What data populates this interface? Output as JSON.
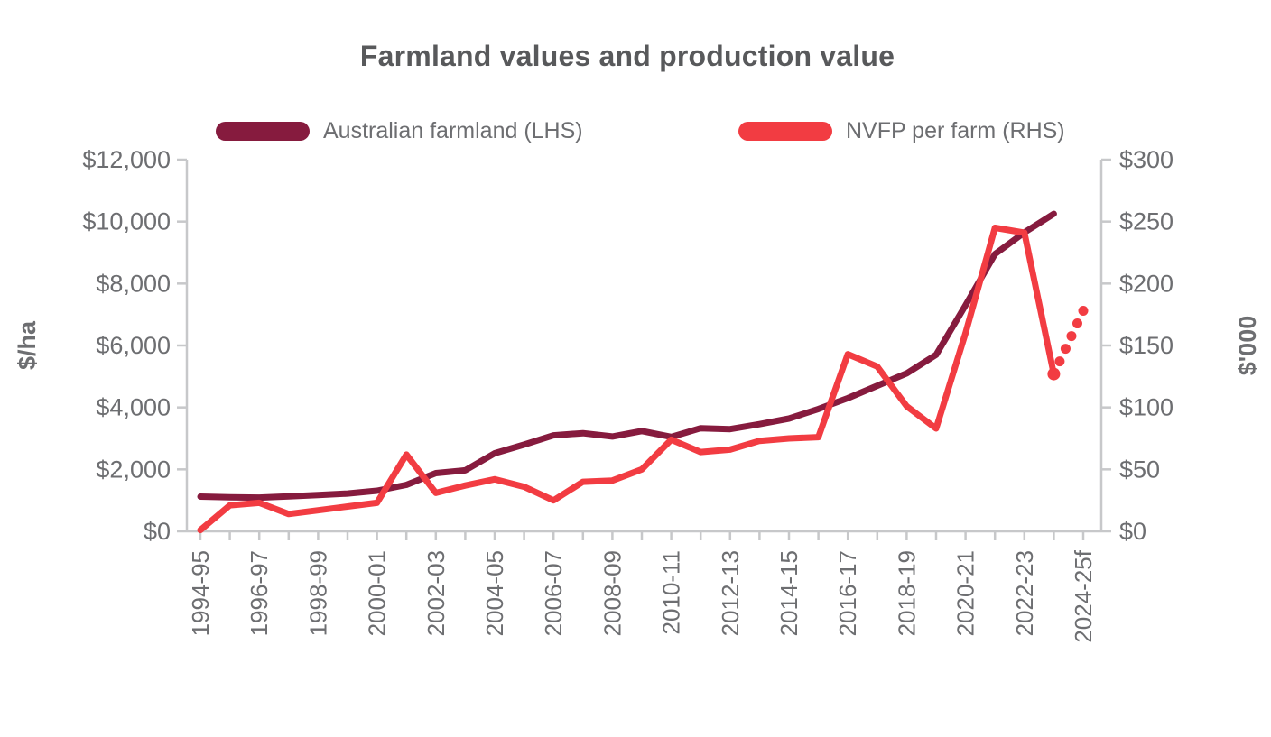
{
  "title": "Farmland values and production value",
  "legend": {
    "farmland_label": "Australian farmland (LHS)",
    "nvfp_label": "NVFP per farm (RHS)"
  },
  "colors": {
    "farmland": "#861b3e",
    "nvfp": "#f23c42",
    "axis": "#c7c8ca",
    "tick_text": "#6d6e71",
    "title_text": "#58595b"
  },
  "chart_data": {
    "type": "line",
    "title": "Farmland values and production value",
    "categories": [
      "1994-95",
      "1995-96",
      "1996-97",
      "1997-98",
      "1998-99",
      "1999-00",
      "2000-01",
      "2001-02",
      "2002-03",
      "2003-04",
      "2004-05",
      "2005-06",
      "2006-07",
      "2007-08",
      "2008-09",
      "2009-10",
      "2010-11",
      "2011-12",
      "2012-13",
      "2013-14",
      "2014-15",
      "2015-16",
      "2016-17",
      "2017-18",
      "2018-19",
      "2019-20",
      "2020-21",
      "2021-22",
      "2022-23",
      "2023-24",
      "2024-25f"
    ],
    "x_tick_labels_shown": [
      "1994-95",
      "1996-97",
      "1998-99",
      "2000-01",
      "2002-03",
      "2004-05",
      "2006-07",
      "2008-09",
      "2010-11",
      "2012-13",
      "2014-15",
      "2016-17",
      "2018-19",
      "2020-21",
      "2022-23",
      "2024-25f"
    ],
    "series": [
      {
        "name": "Australian farmland (LHS)",
        "axis": "left",
        "style": "solid",
        "values": [
          1120,
          1100,
          1090,
          1130,
          1170,
          1220,
          1310,
          1500,
          1880,
          1970,
          2520,
          2800,
          3100,
          3170,
          3060,
          3240,
          3050,
          3330,
          3300,
          3460,
          3640,
          3950,
          4300,
          4700,
          5100,
          5700,
          7300,
          8950,
          9650,
          10250,
          null
        ]
      },
      {
        "name": "NVFP per farm (RHS)",
        "axis": "right",
        "style": "solid-with-dotted-forecast",
        "values": [
          1,
          21,
          23,
          14,
          17,
          20,
          23,
          62,
          31,
          37,
          42,
          36,
          25,
          40,
          41,
          50,
          74,
          64,
          66,
          73,
          75,
          76,
          143,
          133,
          101,
          83,
          160,
          245,
          241,
          127,
          null
        ],
        "forecast": {
          "from_category": "2023-24",
          "from_value": 127,
          "to_category": "2024-25f",
          "to_value": 178
        }
      }
    ],
    "left_axis": {
      "label": "$/ha",
      "min": 0,
      "max": 12000,
      "tick_step": 2000,
      "tick_labels": [
        "$0",
        "$2,000",
        "$4,000",
        "$6,000",
        "$8,000",
        "$10,000",
        "$12,000"
      ]
    },
    "right_axis": {
      "label": "$'000",
      "min": 0,
      "max": 300,
      "tick_step": 50,
      "tick_labels": [
        "$0",
        "$50",
        "$100",
        "$150",
        "$200",
        "$250",
        "$300"
      ]
    },
    "grid": false,
    "legend_position": "top"
  }
}
